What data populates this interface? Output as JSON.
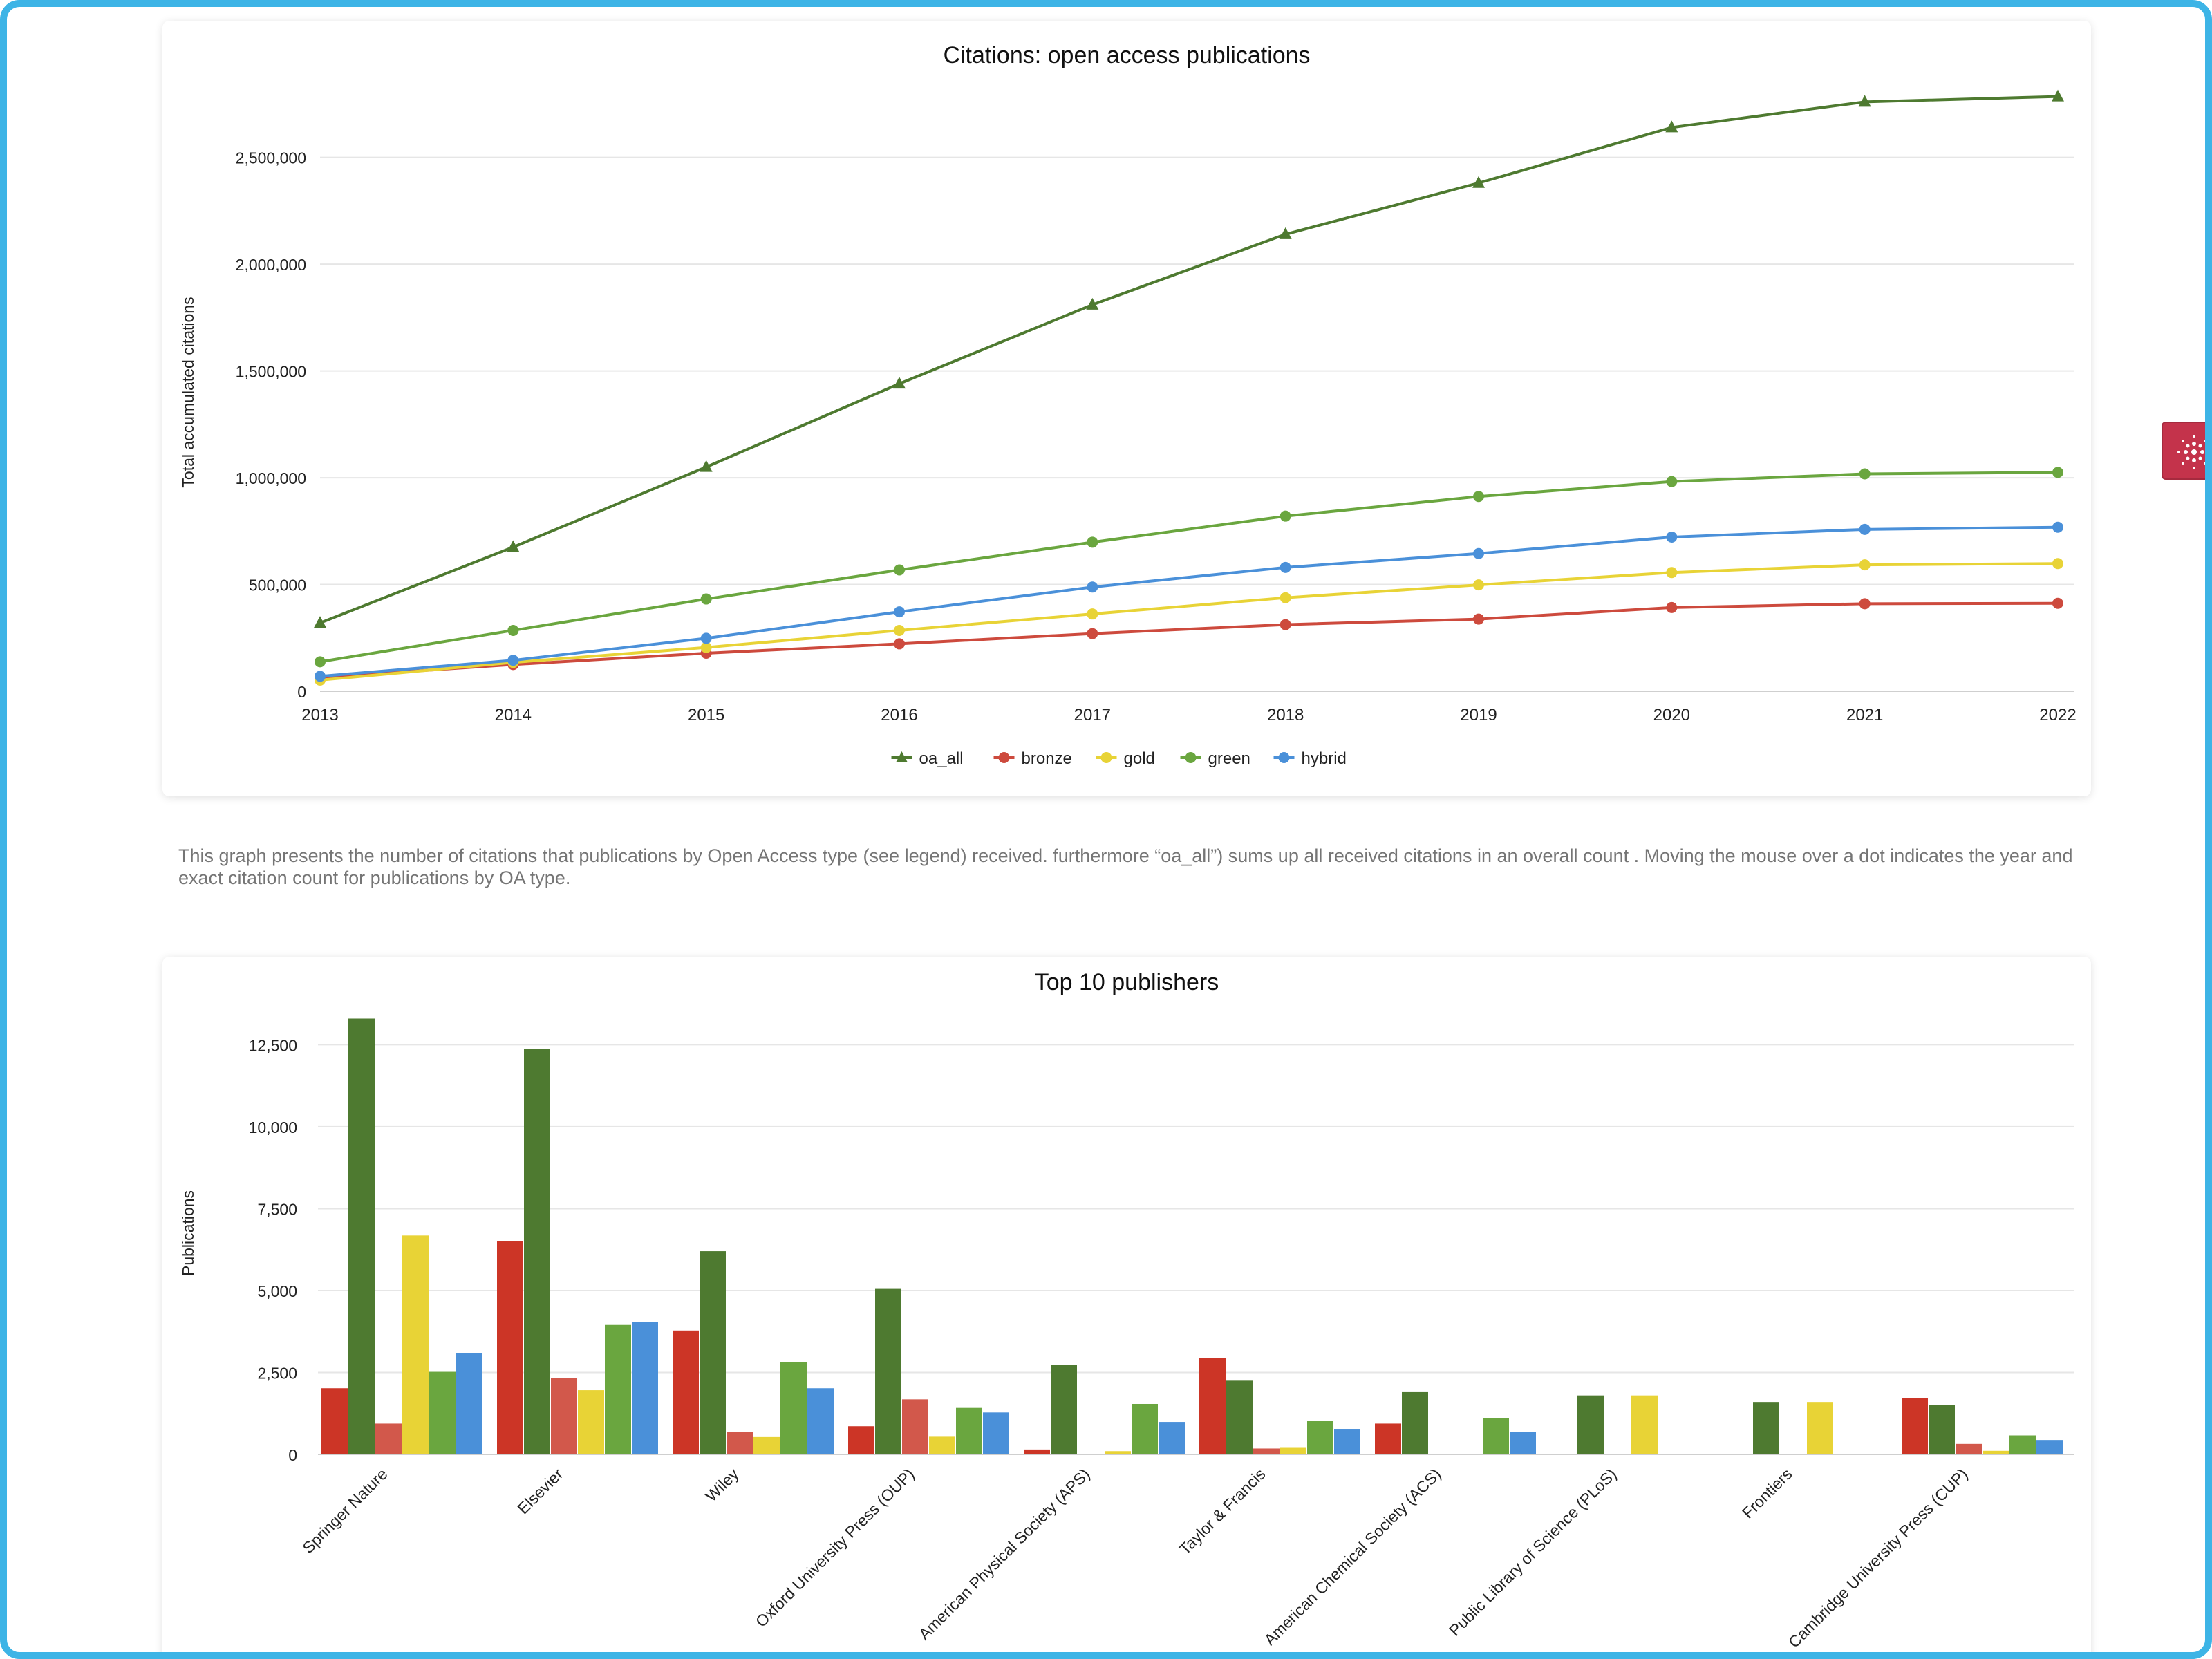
{
  "caption": "This graph presents the number of citations that publications by Open Access type (see legend) received. furthermore “oa_all”) sums up all received citations in an overall count . Moving the mouse over a dot indicates the year and exact citation count for publications by OA type.",
  "badge": {
    "icon": "network-logo-icon",
    "color": "#c4334b"
  },
  "chart_data": [
    {
      "type": "line",
      "title": "Citations: open access publications",
      "xlabel": "",
      "ylabel": "Total accumulated citations",
      "x": [
        "2013",
        "2014",
        "2015",
        "2016",
        "2017",
        "2018",
        "2019",
        "2020",
        "2021",
        "2022"
      ],
      "ylim": [
        0,
        2800000
      ],
      "yticks": [
        0,
        500000,
        1000000,
        1500000,
        2000000,
        2500000
      ],
      "ytick_labels": [
        "0",
        "500,000",
        "1,000,000",
        "1,500,000",
        "2,000,000",
        "2,500,000"
      ],
      "grid": true,
      "legend": "bottom-center",
      "series": [
        {
          "name": "oa_all",
          "color": "#4e7a30",
          "marker": "triangle",
          "values": [
            320000,
            675000,
            1050000,
            1440000,
            1810000,
            2140000,
            2380000,
            2640000,
            2760000,
            2785000
          ]
        },
        {
          "name": "bronze",
          "color": "#cd4a3d",
          "marker": "circle",
          "values": [
            65000,
            125000,
            178000,
            222000,
            270000,
            312000,
            338000,
            392000,
            410000,
            412000
          ]
        },
        {
          "name": "gold",
          "color": "#e8d336",
          "marker": "circle",
          "values": [
            52000,
            135000,
            205000,
            285000,
            362000,
            438000,
            498000,
            556000,
            592000,
            598000
          ]
        },
        {
          "name": "green",
          "color": "#6aa63f",
          "marker": "circle",
          "values": [
            138000,
            285000,
            432000,
            568000,
            698000,
            820000,
            912000,
            982000,
            1018000,
            1025000
          ]
        },
        {
          "name": "hybrid",
          "color": "#4a90d9",
          "marker": "circle",
          "values": [
            70000,
            145000,
            248000,
            372000,
            488000,
            580000,
            645000,
            722000,
            758000,
            768000
          ]
        }
      ]
    },
    {
      "type": "bar",
      "title": "Top 10 publishers",
      "xlabel": "",
      "ylabel": "Publications",
      "categories": [
        "Springer Nature",
        "Elsevier",
        "Wiley",
        "Oxford University Press (OUP)",
        "American Physical Society (APS)",
        "Taylor & Francis",
        "American Chemical Society (ACS)",
        "Public Library of Science (PLoS)",
        "Frontiers",
        "Cambridge University Press (CUP)"
      ],
      "ylim": [
        0,
        13500
      ],
      "yticks": [
        0,
        2500,
        5000,
        7500,
        10000,
        12500
      ],
      "ytick_labels": [
        "0",
        "2,500",
        "5,000",
        "7,500",
        "10,000",
        "12,500"
      ],
      "grid": true,
      "series": [
        {
          "color": "#cc3526",
          "values": [
            2020,
            6500,
            3780,
            860,
            150,
            2950,
            940,
            0,
            0,
            1720
          ]
        },
        {
          "color": "#4e7a30",
          "values": [
            13300,
            12380,
            6200,
            5050,
            2740,
            2250,
            1900,
            1800,
            1600,
            1500
          ]
        },
        {
          "color": "#d2584b",
          "values": [
            940,
            2340,
            680,
            1680,
            0,
            180,
            0,
            0,
            0,
            320
          ]
        },
        {
          "color": "#e8d336",
          "values": [
            6680,
            1960,
            530,
            540,
            100,
            200,
            0,
            1800,
            1600,
            110
          ]
        },
        {
          "color": "#6aa63f",
          "values": [
            2520,
            3950,
            2820,
            1420,
            1540,
            1020,
            1100,
            0,
            0,
            580
          ]
        },
        {
          "color": "#4a90d9",
          "values": [
            3080,
            4050,
            2020,
            1280,
            990,
            780,
            680,
            0,
            0,
            440
          ]
        }
      ]
    }
  ]
}
